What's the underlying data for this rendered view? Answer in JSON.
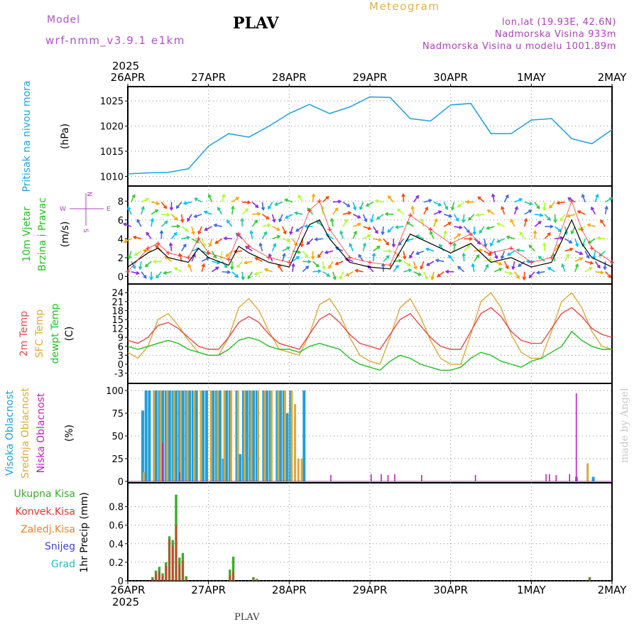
{
  "header": {
    "model_label": "Model",
    "model_version": "wrf-nmm_v3.9.1  e1km",
    "station": "PLAV",
    "product": "Meteogram",
    "lonlat": "lon,lat (19.93E, 42.6N)",
    "elevation": "Nadmorska Visina 933m",
    "model_elevation": "Nadmorska Visina u modelu 1001.89m"
  },
  "footer": {
    "station": "PLAV",
    "credit": "made by Angel"
  },
  "x_axis": {
    "year_label": "2025",
    "ticks": [
      "26APR",
      "27APR",
      "28APR",
      "29APR",
      "30APR",
      "1MAY",
      "2MAY"
    ]
  },
  "colors": {
    "pressure": "#1e9fde",
    "temp2m": "#e84848",
    "sfc_temp": "#e0a838",
    "dewpt": "#22c022",
    "wind_black": "#000000",
    "wind_plus": "#ff3030",
    "cloud_high": "#1e9fde",
    "cloud_mid": "#e0a838",
    "cloud_low": "#c020c0",
    "rain_total": "#3caa2c",
    "rain_conv": "#e83030",
    "rain_freez": "#f08030",
    "snow": "#4040e0",
    "hail": "#20c0c0"
  },
  "chart_data": [
    {
      "type": "line",
      "panel": "pressure",
      "ylabel": [
        "Pritisak na nivou mora",
        "(hPa)"
      ],
      "ylim": [
        1009.5,
        1027
      ],
      "yticks": [
        1010,
        1015,
        1020,
        1025
      ],
      "grid": true,
      "series": [
        {
          "x": [
            0,
            6,
            12,
            18,
            24,
            30,
            36,
            42,
            48,
            54,
            60,
            66,
            72,
            78,
            84,
            90,
            96,
            102,
            108,
            114,
            120,
            126,
            132,
            138,
            144
          ],
          "values": [
            1010.5,
            1010.7,
            1010.8,
            1011.5,
            1016.0,
            1018.5,
            1017.8,
            1020.0,
            1022.5,
            1024.3,
            1022.5,
            1023.8,
            1025.8,
            1025.7,
            1021.5,
            1021.0,
            1024.2,
            1024.5,
            1018.5,
            1018.5,
            1021.2,
            1021.5,
            1017.5,
            1016.5,
            1019.3
          ]
        }
      ]
    },
    {
      "type": "line",
      "panel": "wind",
      "ylabel": [
        "10m Vjetar",
        "Brzina i Pravac",
        "(m/s)"
      ],
      "compass": [
        "N",
        "W",
        "E",
        "S"
      ],
      "ylim": [
        -0.5,
        9
      ],
      "yticks": [
        0,
        2,
        4,
        6,
        8
      ],
      "grid": true,
      "series": [
        {
          "name": "speed",
          "x": [
            0,
            6,
            9,
            12,
            18,
            21,
            24,
            30,
            33,
            36,
            42,
            48,
            54,
            57,
            60,
            66,
            72,
            78,
            84,
            90,
            96,
            102,
            108,
            114,
            120,
            126,
            132,
            135,
            138,
            144
          ],
          "values": [
            1.0,
            2.5,
            3.0,
            2.0,
            1.5,
            3.0,
            2.0,
            1.2,
            3.2,
            2.5,
            1.5,
            1.0,
            5.5,
            6.0,
            4.0,
            1.5,
            1.0,
            0.8,
            4.5,
            3.5,
            2.5,
            3.5,
            1.5,
            2.0,
            1.0,
            1.5,
            6.0,
            3.5,
            2.0,
            1.0
          ]
        },
        {
          "name": "gust",
          "x": [
            0,
            6,
            9,
            12,
            18,
            21,
            24,
            30,
            33,
            36,
            42,
            48,
            54,
            57,
            60,
            66,
            72,
            78,
            84,
            90,
            96,
            102,
            108,
            114,
            120,
            126,
            132,
            135,
            138,
            144
          ],
          "values": [
            0.5,
            3.0,
            3.5,
            2.5,
            2.0,
            4.0,
            2.5,
            1.8,
            4.5,
            3.2,
            2.0,
            1.5,
            7.0,
            8.0,
            5.0,
            2.0,
            1.5,
            1.2,
            6.5,
            5.0,
            3.5,
            4.5,
            2.5,
            3.0,
            1.5,
            2.0,
            8.0,
            5.0,
            3.0,
            1.5
          ]
        }
      ]
    },
    {
      "type": "line",
      "panel": "temperature",
      "ylabel": [
        "2m Temp",
        "SFC Temp",
        "dewpt Temp",
        "(C)"
      ],
      "ylim": [
        -5,
        25
      ],
      "yticks": [
        -3,
        0,
        3,
        6,
        9,
        12,
        15,
        18,
        21,
        24
      ],
      "grid": true,
      "series": [
        {
          "name": "2m Temp",
          "x": [
            0,
            3,
            6,
            9,
            12,
            15,
            18,
            21,
            24,
            27,
            30,
            33,
            36,
            39,
            42,
            45,
            48,
            51,
            54,
            57,
            60,
            63,
            66,
            69,
            72,
            75,
            78,
            81,
            84,
            87,
            90,
            93,
            96,
            99,
            102,
            105,
            108,
            111,
            114,
            117,
            120,
            123,
            126,
            129,
            132,
            135,
            138,
            141,
            144
          ],
          "values": [
            8,
            7,
            9,
            13,
            14,
            12,
            9,
            6,
            5,
            5,
            9,
            14,
            16,
            14,
            10,
            7,
            6,
            5,
            10,
            15,
            17,
            14,
            10,
            7,
            6,
            5,
            10,
            15,
            17,
            13,
            9,
            6,
            5,
            5,
            11,
            17,
            19,
            16,
            11,
            8,
            7,
            7,
            12,
            17,
            19,
            16,
            12,
            10,
            9
          ]
        },
        {
          "name": "SFC Temp",
          "x": [
            0,
            3,
            6,
            9,
            12,
            15,
            18,
            21,
            24,
            27,
            30,
            33,
            36,
            39,
            42,
            45,
            48,
            51,
            54,
            57,
            60,
            63,
            66,
            69,
            72,
            75,
            78,
            81,
            84,
            87,
            90,
            93,
            96,
            99,
            102,
            105,
            108,
            111,
            114,
            117,
            120,
            123,
            126,
            129,
            132,
            135,
            138,
            141,
            144
          ],
          "values": [
            4,
            2,
            6,
            15,
            17,
            13,
            8,
            4,
            3,
            3,
            9,
            19,
            22,
            18,
            11,
            5,
            4,
            3,
            10,
            20,
            22,
            17,
            9,
            3,
            1,
            0,
            9,
            19,
            22,
            16,
            8,
            2,
            0,
            0,
            10,
            21,
            24,
            19,
            10,
            4,
            2,
            2,
            11,
            21,
            24,
            19,
            11,
            6,
            5
          ]
        },
        {
          "name": "dewpt Temp",
          "x": [
            0,
            3,
            6,
            9,
            12,
            15,
            18,
            21,
            24,
            27,
            30,
            33,
            36,
            39,
            42,
            45,
            48,
            51,
            54,
            57,
            60,
            63,
            66,
            69,
            72,
            75,
            78,
            81,
            84,
            87,
            90,
            93,
            96,
            99,
            102,
            105,
            108,
            111,
            114,
            117,
            120,
            123,
            126,
            129,
            132,
            135,
            138,
            141,
            144
          ],
          "values": [
            6,
            5,
            6,
            7,
            8,
            7,
            5,
            4,
            3,
            3,
            5,
            8,
            9,
            8,
            6,
            5,
            5,
            4,
            6,
            7,
            6,
            5,
            2,
            0,
            -1,
            -2,
            1,
            3,
            2,
            0,
            -1,
            -2,
            -2,
            -1,
            2,
            4,
            3,
            1,
            0,
            -1,
            1,
            2,
            4,
            6,
            11,
            8,
            6,
            5,
            5
          ]
        }
      ]
    },
    {
      "type": "bar",
      "panel": "clouds",
      "ylabel": [
        "Visoka Oblacnost",
        "Srednja Oblacnost",
        "Niska Oblacnost",
        "(%)"
      ],
      "ylim": [
        0,
        100
      ],
      "yticks": [
        0,
        25,
        50,
        75,
        100
      ],
      "grid": true,
      "series": [
        {
          "name": "Visoka Oblacnost",
          "x": [
            4,
            5,
            6,
            8,
            9,
            10,
            11,
            12,
            13,
            14,
            15,
            16,
            17,
            18,
            19,
            20,
            22,
            23,
            25,
            26,
            27,
            28,
            29,
            30,
            32,
            33,
            34,
            35,
            36,
            37,
            38,
            40,
            41,
            42,
            44,
            45,
            46,
            47,
            48,
            52,
            133,
            138
          ],
          "values": [
            78,
            100,
            100,
            100,
            100,
            100,
            100,
            100,
            100,
            100,
            100,
            100,
            100,
            100,
            100,
            100,
            100,
            100,
            100,
            100,
            100,
            25,
            100,
            100,
            100,
            30,
            100,
            100,
            100,
            100,
            100,
            100,
            100,
            100,
            100,
            100,
            100,
            75,
            100,
            100,
            5,
            5
          ]
        },
        {
          "name": "Srednja Oblacnost",
          "x": [
            4,
            7,
            9,
            11,
            13,
            15,
            17,
            19,
            21,
            24,
            26,
            28,
            30,
            32,
            34,
            36,
            38,
            40,
            42,
            44,
            46,
            48,
            49,
            50,
            51,
            136
          ],
          "values": [
            10,
            100,
            100,
            100,
            100,
            100,
            100,
            100,
            100,
            100,
            100,
            100,
            100,
            100,
            100,
            100,
            100,
            100,
            100,
            100,
            100,
            100,
            85,
            25,
            25,
            20
          ]
        },
        {
          "name": "Niska Oblacnost",
          "x": [
            10,
            15,
            60,
            72,
            75,
            77,
            79,
            87,
            103,
            124,
            125,
            127,
            131,
            133
          ],
          "values": [
            42,
            10,
            7,
            8,
            8,
            7,
            8,
            7,
            7,
            8,
            8,
            7,
            8,
            97
          ]
        }
      ]
    },
    {
      "type": "bar",
      "panel": "precipitation",
      "ylabel": [
        "1hr Precip (mm)"
      ],
      "legend": [
        "Ukupna Kisa",
        "Konvek.Kisa",
        "Zaledj.Kisa",
        "Snijeg",
        "Grad"
      ],
      "ylim": [
        0,
        0.95
      ],
      "yticks": [
        0,
        0.2,
        0.4,
        0.6,
        0.8
      ],
      "grid": true,
      "series": [
        {
          "name": "Ukupna Kisa",
          "x": [
            7,
            8,
            9,
            10,
            11,
            12,
            13,
            14,
            15,
            16,
            17,
            30,
            31,
            37,
            38,
            137
          ],
          "values": [
            0.04,
            0.11,
            0.15,
            0.08,
            0.2,
            0.48,
            0.44,
            0.93,
            0.25,
            0.3,
            0.05,
            0.12,
            0.26,
            0.04,
            0.02,
            0.04
          ]
        },
        {
          "name": "Konvek.Kisa",
          "x": [
            7,
            8,
            9,
            10,
            11,
            12,
            13,
            14,
            15,
            16,
            17,
            30,
            31,
            37,
            38,
            137
          ],
          "values": [
            0.02,
            0.08,
            0.1,
            0.05,
            0.16,
            0.45,
            0.38,
            0.6,
            0.18,
            0.22,
            0.02,
            0.05,
            0.1,
            0.02,
            0.01,
            0.02
          ]
        }
      ]
    }
  ]
}
